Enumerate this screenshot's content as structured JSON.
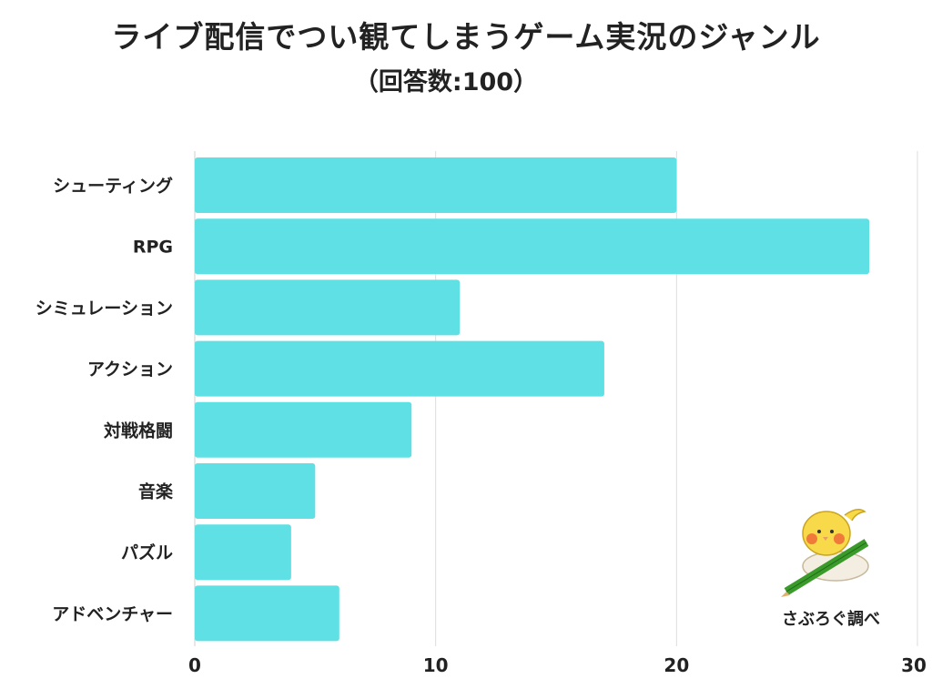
{
  "chart_data": {
    "type": "bar",
    "orientation": "horizontal",
    "title": "ライブ配信でつい観てしまうゲーム実況のジャンル",
    "subtitle": "（回答数:100）",
    "categories": [
      "シューティング",
      "RPG",
      "シミュレーション",
      "アクション",
      "対戦格闘",
      "音楽",
      "パズル",
      "アドベンチャー"
    ],
    "values": [
      20,
      28,
      11,
      17,
      9,
      5,
      4,
      6
    ],
    "xlim": [
      0,
      30
    ],
    "xticks": [
      0,
      10,
      20,
      30
    ],
    "bar_color": "#5fe0e4",
    "grid": true
  },
  "credit": "さぶろぐ調べ"
}
